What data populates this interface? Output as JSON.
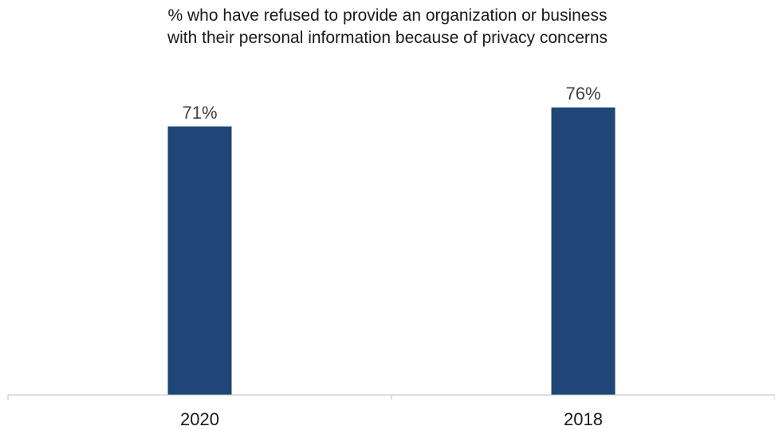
{
  "chart_data": {
    "type": "bar",
    "title_lines": [
      "% who have refused to provide an organization or business",
      "with their personal information because of privacy concerns"
    ],
    "categories": [
      "2020",
      "2018"
    ],
    "values": [
      71,
      76
    ],
    "data_labels": [
      "71%",
      "76%"
    ],
    "xlabel": "",
    "ylabel": "",
    "ylim": [
      0,
      76
    ],
    "grid": false,
    "legend": "none",
    "bar_color": "#1F4677",
    "axis_color": "#BFBFBF"
  }
}
